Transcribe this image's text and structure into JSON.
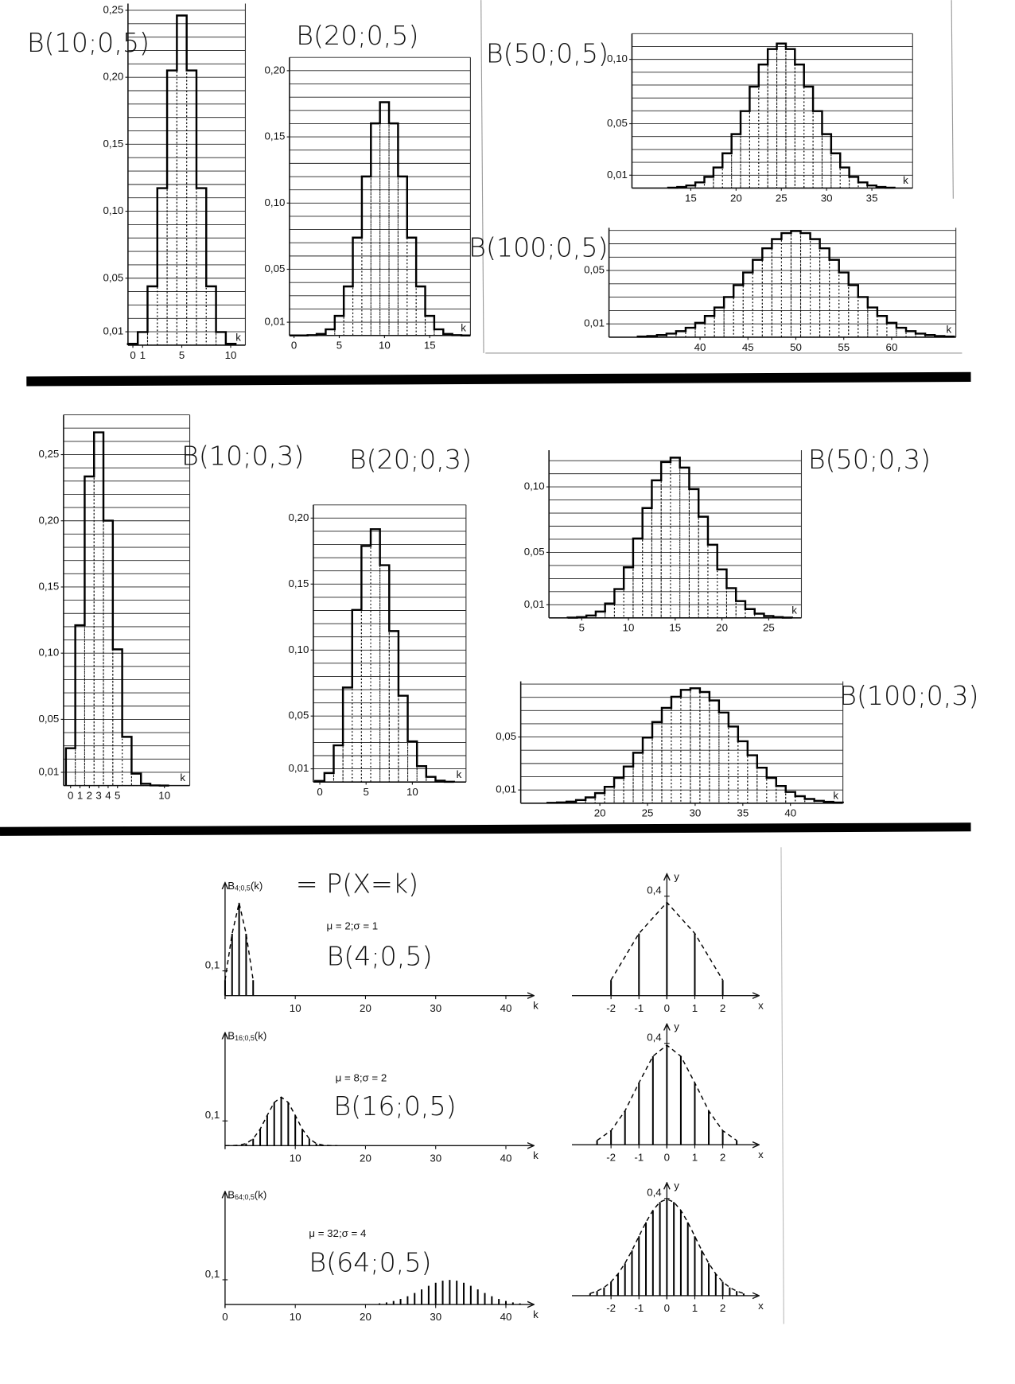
{
  "chart_data": [
    {
      "type": "bar",
      "title": "B(10;0,5)",
      "x_label": "k",
      "grid_step": 0.01,
      "x": [
        0,
        1,
        2,
        3,
        4,
        5,
        6,
        7,
        8,
        9,
        10
      ],
      "values": [
        0.001,
        0.0098,
        0.0439,
        0.1172,
        0.2051,
        0.2461,
        0.2051,
        0.1172,
        0.0439,
        0.0098,
        0.001
      ],
      "xlim": [
        -0.5,
        11.5
      ],
      "ylim": [
        0,
        0.255
      ],
      "xticks": [
        0,
        1,
        5,
        10
      ],
      "yticks": [
        {
          "value": 0.01,
          "label": "0,01"
        },
        {
          "value": 0.05,
          "label": "0,05"
        },
        {
          "value": 0.1,
          "label": "0,10"
        },
        {
          "value": 0.15,
          "label": "0,15"
        },
        {
          "value": 0.2,
          "label": "0,20"
        },
        {
          "value": 0.25,
          "label": "0,25"
        }
      ]
    },
    {
      "type": "bar",
      "title": "B(20;0,5)",
      "x_label": "k",
      "grid_step": 0.01,
      "x": [
        0,
        1,
        2,
        3,
        4,
        5,
        6,
        7,
        8,
        9,
        10,
        11,
        12,
        13,
        14,
        15,
        16,
        17,
        18,
        19
      ],
      "values": [
        0,
        0,
        0.0002,
        0.0011,
        0.0046,
        0.0148,
        0.037,
        0.0739,
        0.1201,
        0.1602,
        0.1762,
        0.1602,
        0.1201,
        0.0739,
        0.037,
        0.0148,
        0.0046,
        0.0011,
        0.0002,
        0
      ],
      "xlim": [
        -0.5,
        19.5
      ],
      "ylim": [
        0,
        0.21
      ],
      "xticks": [
        0,
        5,
        10,
        15
      ],
      "yticks": [
        {
          "value": 0.01,
          "label": "0,01"
        },
        {
          "value": 0.05,
          "label": "0,05"
        },
        {
          "value": 0.1,
          "label": "0,10"
        },
        {
          "value": 0.15,
          "label": "0,15"
        },
        {
          "value": 0.2,
          "label": "0,20"
        }
      ]
    },
    {
      "type": "bar",
      "title": "B(50;0,5)",
      "x_label": "k",
      "grid_step": 0.01,
      "x": [
        13,
        14,
        15,
        16,
        17,
        18,
        19,
        20,
        21,
        22,
        23,
        24,
        25,
        26,
        27,
        28,
        29,
        30,
        31,
        32,
        33,
        34,
        35,
        36,
        37
      ],
      "values": [
        0.0003,
        0.0008,
        0.002,
        0.0044,
        0.0087,
        0.016,
        0.027,
        0.0419,
        0.0598,
        0.0788,
        0.096,
        0.108,
        0.1123,
        0.108,
        0.096,
        0.0788,
        0.0598,
        0.0419,
        0.027,
        0.016,
        0.0087,
        0.0044,
        0.002,
        0.0008,
        0.0003
      ],
      "xlim": [
        8.5,
        39.5
      ],
      "ylim": [
        0,
        0.12
      ],
      "xticks": [
        15,
        20,
        25,
        30,
        35
      ],
      "yticks": [
        {
          "value": 0.01,
          "label": "0,01"
        },
        {
          "value": 0.05,
          "label": "0,05"
        },
        {
          "value": 0.1,
          "label": "0,10"
        }
      ]
    },
    {
      "type": "bar",
      "title": "B(100;0,5)",
      "x_label": "k",
      "grid_step": 0.01,
      "x": [
        34,
        35,
        36,
        37,
        38,
        39,
        40,
        41,
        42,
        43,
        44,
        45,
        46,
        47,
        48,
        49,
        50,
        51,
        52,
        53,
        54,
        55,
        56,
        57,
        58,
        59,
        60,
        61,
        62,
        63,
        64,
        65,
        66
      ],
      "values": [
        0.0005,
        0.0009,
        0.0016,
        0.0027,
        0.0045,
        0.0071,
        0.0108,
        0.0159,
        0.0223,
        0.0301,
        0.039,
        0.0485,
        0.058,
        0.0666,
        0.0735,
        0.078,
        0.0796,
        0.078,
        0.0735,
        0.0666,
        0.058,
        0.0485,
        0.039,
        0.0301,
        0.0223,
        0.0159,
        0.0108,
        0.0071,
        0.0045,
        0.0027,
        0.0016,
        0.0009,
        0.0005
      ],
      "xlim": [
        30.5,
        66.7
      ],
      "ylim": [
        0,
        0.082
      ],
      "xticks": [
        40,
        45,
        50,
        55,
        60
      ],
      "yticks": [
        {
          "value": 0.01,
          "label": "0,01"
        },
        {
          "value": 0.05,
          "label": "0,05"
        }
      ]
    },
    {
      "type": "bar",
      "title": "B(10;0,3)",
      "x_label": "k",
      "grid_step": 0.01,
      "x": [
        0,
        1,
        2,
        3,
        4,
        5,
        6,
        7,
        8,
        9,
        10
      ],
      "values": [
        0.0282,
        0.1211,
        0.2335,
        0.2668,
        0.2001,
        0.1029,
        0.0368,
        0.009,
        0.0014,
        0.0001,
        0
      ],
      "xlim": [
        -0.75,
        12.7
      ],
      "ylim": [
        0,
        0.28
      ],
      "xticks": [
        0,
        1,
        2,
        3,
        4,
        5,
        10
      ],
      "yticks": [
        {
          "value": 0.01,
          "label": "0,01"
        },
        {
          "value": 0.05,
          "label": "0,05"
        },
        {
          "value": 0.1,
          "label": "0,10"
        },
        {
          "value": 0.15,
          "label": "0,15"
        },
        {
          "value": 0.2,
          "label": "0,20"
        },
        {
          "value": 0.25,
          "label": "0,25"
        }
      ]
    },
    {
      "type": "bar",
      "title": "B(20;0,3)",
      "x_label": "k",
      "grid_step": 0.01,
      "x": [
        0,
        1,
        2,
        3,
        4,
        5,
        6,
        7,
        8,
        9,
        10,
        11,
        12,
        13,
        14
      ],
      "values": [
        0.0008,
        0.0068,
        0.0278,
        0.0716,
        0.1304,
        0.1789,
        0.1916,
        0.1643,
        0.1144,
        0.0654,
        0.0308,
        0.012,
        0.0039,
        0.001,
        0.0002
      ],
      "xlim": [
        -0.7,
        15.8
      ],
      "ylim": [
        0,
        0.21
      ],
      "xticks": [
        0,
        5,
        10
      ],
      "yticks": [
        {
          "value": 0.01,
          "label": "0,01"
        },
        {
          "value": 0.05,
          "label": "0,05"
        },
        {
          "value": 0.1,
          "label": "0,10"
        },
        {
          "value": 0.15,
          "label": "0,15"
        },
        {
          "value": 0.2,
          "label": "0,20"
        }
      ]
    },
    {
      "type": "bar",
      "title": "B(50;0,3)",
      "x_label": "k",
      "grid_step": 0.01,
      "x": [
        4,
        5,
        6,
        7,
        8,
        9,
        10,
        11,
        12,
        13,
        14,
        15,
        16,
        17,
        18,
        19,
        20,
        21,
        22,
        23,
        24,
        25,
        26,
        27
      ],
      "values": [
        0.0002,
        0.0006,
        0.0018,
        0.0048,
        0.011,
        0.022,
        0.0386,
        0.0606,
        0.0838,
        0.105,
        0.1189,
        0.1223,
        0.1147,
        0.0983,
        0.0772,
        0.0558,
        0.037,
        0.0227,
        0.0128,
        0.0067,
        0.0032,
        0.0014,
        0.0006,
        0.0002
      ],
      "xlim": [
        1.5,
        28.5
      ],
      "ylim": [
        0,
        0.128
      ],
      "xticks": [
        5,
        10,
        15,
        20,
        25
      ],
      "yticks": [
        {
          "value": 0.01,
          "label": "0,01"
        },
        {
          "value": 0.05,
          "label": "0,05"
        },
        {
          "value": 0.1,
          "label": "0,10"
        }
      ]
    },
    {
      "type": "bar",
      "title": "B(100;0,3)",
      "x_label": "k",
      "grid_step": 0.01,
      "x": [
        15,
        16,
        17,
        18,
        19,
        20,
        21,
        22,
        23,
        24,
        25,
        26,
        27,
        28,
        29,
        30,
        31,
        32,
        33,
        34,
        35,
        36,
        37,
        38,
        39,
        40,
        41,
        42,
        43,
        44,
        45
      ],
      "values": [
        0.0003,
        0.0006,
        0.0012,
        0.0024,
        0.0044,
        0.0076,
        0.0124,
        0.0191,
        0.0277,
        0.0381,
        0.0496,
        0.0613,
        0.072,
        0.0804,
        0.0856,
        0.0868,
        0.084,
        0.0776,
        0.0685,
        0.0579,
        0.0468,
        0.0362,
        0.0268,
        0.0191,
        0.013,
        0.0085,
        0.0053,
        0.0032,
        0.0018,
        0.001,
        0.0005
      ],
      "xlim": [
        11.7,
        45.5
      ],
      "ylim": [
        0,
        0.092
      ],
      "xticks": [
        20,
        25,
        30,
        35,
        40
      ],
      "yticks": [
        {
          "value": 0.01,
          "label": "0,01"
        },
        {
          "value": 0.05,
          "label": "0,05"
        }
      ]
    },
    {
      "type": "stem",
      "y_label": {
        "base": "B",
        "sub": "4;0,5",
        "tail": "(k)"
      },
      "x_label": "k",
      "envelope": true,
      "annotations": [
        "= P(X=k)",
        "μ = 2;σ = 1",
        "B(4;0,5)"
      ],
      "x": [
        0,
        1,
        2,
        3,
        4
      ],
      "values": [
        0.0625,
        0.25,
        0.375,
        0.25,
        0.0625
      ],
      "xlim": [
        0,
        44
      ],
      "ylim": [
        0,
        0.457
      ],
      "xticks": [
        10,
        20,
        30,
        40
      ],
      "yticks": [
        {
          "value": 0.1,
          "label": "0,1"
        }
      ]
    },
    {
      "type": "stem",
      "y_label": "y",
      "x_label": "x",
      "envelope": true,
      "x": [
        -2,
        -1,
        0,
        1,
        2
      ],
      "values": [
        0.0625,
        0.25,
        0.375,
        0.25,
        0.0625
      ],
      "xlim": [
        -3.4,
        3.3
      ],
      "ylim": [
        0,
        0.49
      ],
      "xticks": [
        -2,
        -1,
        0,
        1,
        2
      ],
      "yticks": [
        {
          "value": 0.4,
          "label": "0,4"
        }
      ]
    },
    {
      "type": "stem",
      "y_label": {
        "base": "B",
        "sub": "16;0,5",
        "tail": "(k)"
      },
      "x_label": "k",
      "envelope": true,
      "annotations": [
        "μ = 8;σ = 2",
        "B(16;0,5)"
      ],
      "x": [
        0,
        1,
        2,
        3,
        4,
        5,
        6,
        7,
        8,
        9,
        10,
        11,
        12,
        13,
        14,
        15,
        16
      ],
      "values": [
        0,
        0.0002,
        0.0018,
        0.0085,
        0.0278,
        0.0667,
        0.1222,
        0.1746,
        0.1964,
        0.1746,
        0.1222,
        0.0667,
        0.0278,
        0.0085,
        0.0018,
        0.0002,
        0
      ],
      "xlim": [
        0,
        44
      ],
      "ylim": [
        0,
        0.457
      ],
      "xticks": [
        10,
        20,
        30,
        40
      ],
      "yticks": [
        {
          "value": 0.1,
          "label": "0,1"
        }
      ]
    },
    {
      "type": "stem",
      "y_label": "y",
      "x_label": "x",
      "envelope": true,
      "x": [
        -2.5,
        -2,
        -1.5,
        -1,
        -0.5,
        0,
        0.5,
        1,
        1.5,
        2,
        2.5
      ],
      "values": [
        0.017,
        0.0556,
        0.1334,
        0.2444,
        0.3492,
        0.3928,
        0.3492,
        0.2444,
        0.1334,
        0.0556,
        0.017
      ],
      "xlim": [
        -3.4,
        3.3
      ],
      "ylim": [
        0,
        0.477
      ],
      "xticks": [
        -2,
        -1,
        0,
        1,
        2
      ],
      "yticks": [
        {
          "value": 0.4,
          "label": "0,4"
        }
      ]
    },
    {
      "type": "stem",
      "y_label": {
        "base": "B",
        "sub": "64;0,5",
        "tail": "(k)"
      },
      "x_label": "k",
      "envelope": false,
      "annotations": [
        "μ = 32;σ = 4",
        "B(64;0,5)"
      ],
      "x": [
        22,
        23,
        24,
        25,
        26,
        27,
        28,
        29,
        30,
        31,
        32,
        33,
        34,
        35,
        36,
        37,
        38,
        39,
        40,
        41,
        42
      ],
      "values": [
        0.0047,
        0.0084,
        0.0142,
        0.0224,
        0.0333,
        0.0465,
        0.0611,
        0.0755,
        0.0878,
        0.0963,
        0.0993,
        0.0963,
        0.0878,
        0.0755,
        0.0611,
        0.0465,
        0.0333,
        0.0224,
        0.0142,
        0.0084,
        0.0047
      ],
      "xlim": [
        0,
        44
      ],
      "ylim": [
        0,
        0.457
      ],
      "xticks": [
        0,
        10,
        20,
        30,
        40
      ],
      "yticks": [
        {
          "value": 0.1,
          "label": "0,1"
        }
      ]
    },
    {
      "type": "stem",
      "y_label": "y",
      "x_label": "x",
      "envelope": true,
      "x": [
        -2.75,
        -2.5,
        -2.25,
        -2,
        -1.75,
        -1.5,
        -1.25,
        -1,
        -0.75,
        -0.5,
        -0.25,
        0,
        0.25,
        0.5,
        0.75,
        1,
        1.25,
        1.5,
        1.75,
        2,
        2.25,
        2.5,
        2.75
      ],
      "values": [
        0.009,
        0.0188,
        0.0336,
        0.0568,
        0.0896,
        0.1332,
        0.186,
        0.2444,
        0.302,
        0.3512,
        0.3852,
        0.3972,
        0.3852,
        0.3512,
        0.302,
        0.2444,
        0.186,
        0.1332,
        0.0896,
        0.0568,
        0.0336,
        0.0188,
        0.009
      ],
      "xlim": [
        -3.4,
        3.3
      ],
      "ylim": [
        0,
        0.465
      ],
      "xticks": [
        -2,
        -1,
        0,
        1,
        2
      ],
      "yticks": [
        {
          "value": 0.4,
          "label": "0,4"
        }
      ]
    }
  ]
}
